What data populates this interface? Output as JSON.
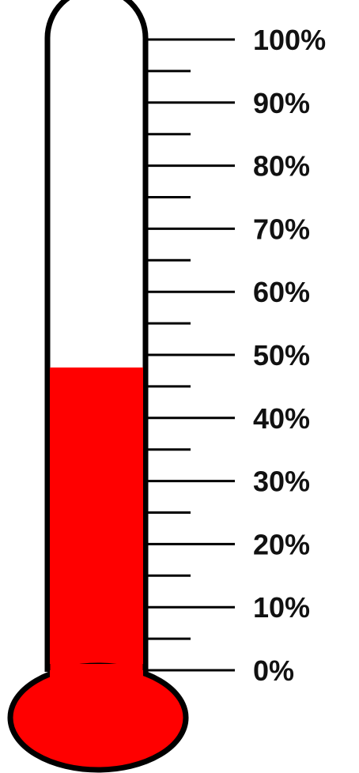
{
  "chart_data": {
    "type": "thermometer",
    "value": 48,
    "min": 0,
    "max": 100,
    "unit": "%",
    "major_ticks": [
      0,
      10,
      20,
      30,
      40,
      50,
      60,
      70,
      80,
      90,
      100
    ],
    "minor_ticks": [
      5,
      15,
      25,
      35,
      45,
      55,
      65,
      75,
      85,
      95
    ],
    "tick_labels": [
      "0%",
      "10%",
      "20%",
      "30%",
      "40%",
      "50%",
      "60%",
      "70%",
      "80%",
      "90%",
      "100%"
    ],
    "fill_color": "#ff0000",
    "outline_color": "#000000"
  }
}
